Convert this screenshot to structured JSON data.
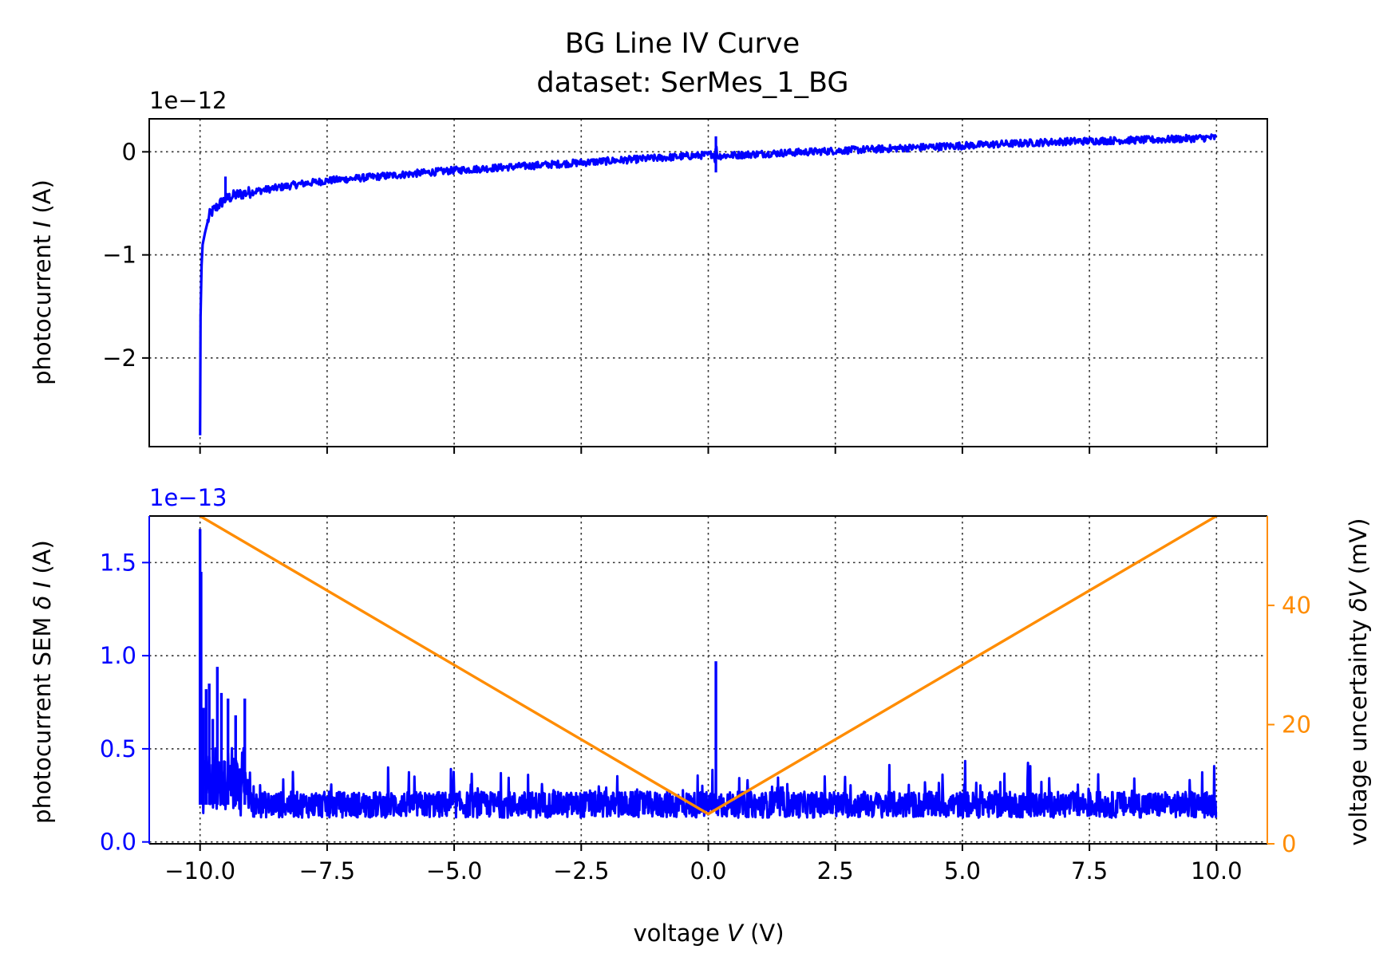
{
  "title": "BG Line IV Curve",
  "subtitle": "dataset: SerMes_1_BG",
  "colors": {
    "current": "#0000ff",
    "sem": "#0000ff",
    "voltage_uncertainty": "#ff8c00",
    "axes": "#000000"
  },
  "chart_data": [
    {
      "type": "line",
      "panel": "top",
      "ylabel_prefix": "photocurrent ",
      "ylabel_symbol": "I",
      "ylabel_suffix": " (A)",
      "offset_label": "1e−12",
      "xlim": [
        -11,
        11
      ],
      "ylim": [
        -2.86,
        0.32
      ],
      "y_scale_factor": 1e-12,
      "grid": true,
      "xticks": [
        -10,
        -7.5,
        -5,
        -2.5,
        0,
        2.5,
        5,
        7.5,
        10
      ],
      "yticks": [
        0,
        -1,
        -2
      ],
      "ytick_labels": [
        "0",
        "−1",
        "−2"
      ],
      "series": [
        {
          "x": [
            -10.0,
            -9.99,
            -9.97,
            -9.95,
            -9.9,
            -9.85,
            -9.8,
            -9.7,
            -9.6,
            -9.5,
            -9.3,
            -9.0,
            -8.5,
            -8.0,
            -7.5,
            -7.0,
            -6.0,
            -5.0,
            -4.0,
            -3.0,
            -2.0,
            -1.0,
            0.0,
            0.1,
            0.2,
            1.0,
            2.0,
            3.0,
            4.0,
            5.0,
            6.0,
            7.0,
            8.0,
            9.0,
            10.0
          ],
          "values": [
            -2.75,
            -1.6,
            -1.1,
            -0.9,
            -0.78,
            -0.68,
            -0.6,
            -0.55,
            -0.5,
            -0.46,
            -0.42,
            -0.39,
            -0.35,
            -0.31,
            -0.28,
            -0.26,
            -0.22,
            -0.18,
            -0.15,
            -0.12,
            -0.09,
            -0.06,
            -0.03,
            -0.02,
            -0.04,
            -0.02,
            0.0,
            0.02,
            0.04,
            0.06,
            0.08,
            0.1,
            0.11,
            0.12,
            0.14
          ]
        }
      ]
    },
    {
      "type": "line",
      "panel": "bottom",
      "xlabel_prefix": "voltage ",
      "xlabel_symbol": "V",
      "xlabel_suffix": " (V)",
      "ylabel_prefix": "photocurrent SEM ",
      "ylabel_symbol": "δ I",
      "ylabel_suffix": " (A)",
      "offset_label": "1e−13",
      "xlim": [
        -11,
        11
      ],
      "ylim": [
        -0.01,
        1.75
      ],
      "y_scale_factor": 1e-13,
      "grid": true,
      "xticks": [
        -10,
        -7.5,
        -5,
        -2.5,
        0,
        2.5,
        5,
        7.5,
        10
      ],
      "xtick_labels": [
        "−10.0",
        "−7.5",
        "−5.0",
        "−2.5",
        "0.0",
        "2.5",
        "5.0",
        "7.5",
        "10.0"
      ],
      "yticks": [
        0,
        0.5,
        1.0,
        1.5
      ],
      "ytick_labels": [
        "0.0",
        "0.5",
        "1.0",
        "1.5"
      ],
      "secondary_axis": {
        "ylabel_prefix": "voltage uncertainty ",
        "ylabel_symbol": "δV",
        "ylabel_suffix": " (mV)",
        "ylim": [
          0,
          55
        ],
        "yticks": [
          0,
          20,
          40
        ],
        "ytick_labels": [
          "0",
          "20",
          "40"
        ]
      },
      "series": [
        {
          "axis": "left",
          "noise_baseline": 0.2,
          "x": [
            -10.0,
            -10.0,
            -9.98,
            -9.93,
            -9.88,
            -9.82,
            -9.75,
            -9.66,
            -9.58,
            -9.45,
            -9.3,
            -9.12,
            0.15,
            0.15
          ],
          "values": [
            0.2,
            1.68,
            1.45,
            0.72,
            0.82,
            0.85,
            0.66,
            0.94,
            0.8,
            0.77,
            0.68,
            0.77,
            0.2,
            0.97
          ]
        },
        {
          "axis": "right",
          "x": [
            -10,
            0,
            10
          ],
          "values": [
            55,
            5,
            55
          ]
        }
      ]
    }
  ]
}
